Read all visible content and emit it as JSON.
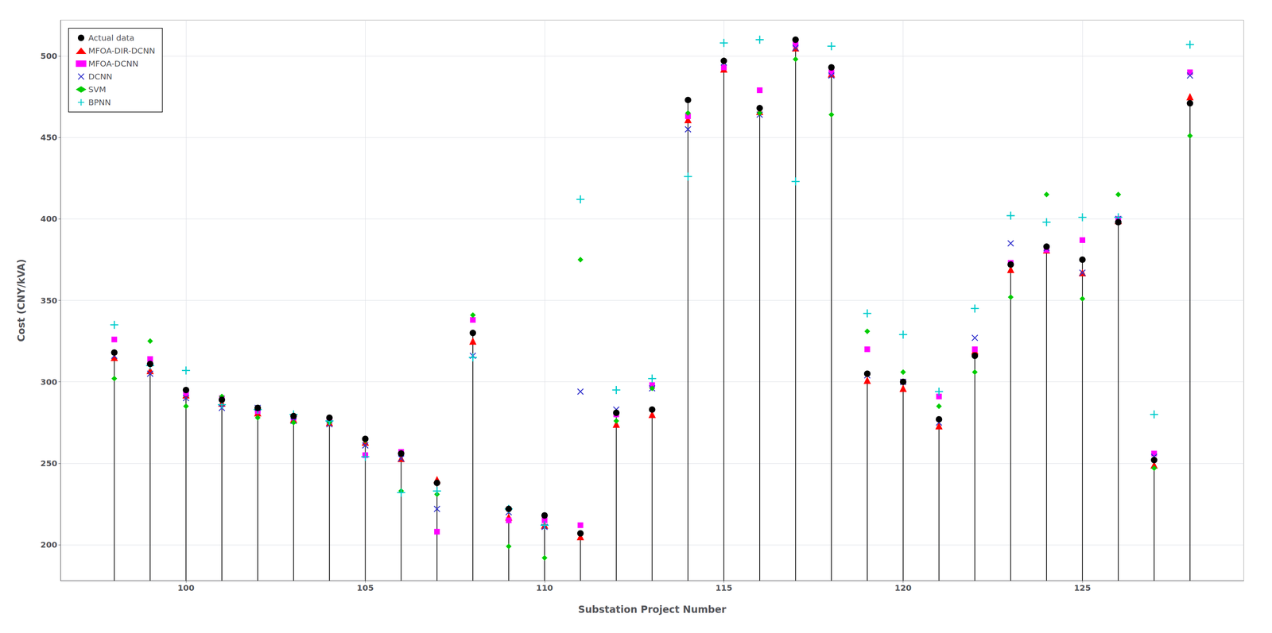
{
  "chart_data": {
    "type": "scatter",
    "xlabel": "Substation Project Number",
    "ylabel": "Cost (CNY/kVA)",
    "x": [
      98,
      99,
      100,
      101,
      102,
      103,
      104,
      105,
      106,
      107,
      108,
      109,
      110,
      111,
      112,
      113,
      114,
      115,
      116,
      117,
      118,
      119,
      120,
      121,
      122,
      123,
      124,
      125,
      126,
      127,
      128
    ],
    "xlim": [
      96.5,
      129.5
    ],
    "ylim": [
      178,
      522
    ],
    "xticks": [
      100,
      105,
      110,
      115,
      120,
      125
    ],
    "yticks": [
      200,
      250,
      300,
      350,
      400,
      450,
      500
    ],
    "grid": true,
    "legend": "upper left",
    "series": [
      {
        "name": "Actual data",
        "type": "stem",
        "color": "#000000",
        "marker": "circle",
        "values": [
          318,
          311,
          295,
          289,
          284,
          279,
          278,
          265,
          256,
          238,
          330,
          222,
          218,
          207,
          281,
          283,
          473,
          497,
          468,
          510,
          493,
          305,
          300,
          277,
          316,
          372,
          383,
          375,
          398,
          252,
          471
        ]
      },
      {
        "name": "MFOA-DIR-DCNN",
        "type": "scatter",
        "color": "#ff0000",
        "marker": "triangle",
        "values": [
          315,
          307,
          292,
          287,
          281,
          277,
          275,
          263,
          253,
          240,
          325,
          217,
          212,
          205,
          274,
          280,
          461,
          492,
          466,
          505,
          489,
          301,
          296,
          273,
          319,
          369,
          381,
          367,
          399,
          249,
          475
        ]
      },
      {
        "name": "MFOA-DCNN",
        "type": "scatter",
        "color": "#ff00ff",
        "marker": "square",
        "values": [
          326,
          314,
          293,
          290,
          282,
          278,
          276,
          255,
          257,
          208,
          338,
          215,
          215,
          212,
          280,
          298,
          463,
          493,
          479,
          507,
          490,
          320,
          300,
          291,
          320,
          373,
          381,
          387,
          400,
          256,
          490
        ]
      },
      {
        "name": "DCNN",
        "type": "scatter",
        "color": "#3333cc",
        "marker": "x",
        "values": [
          316,
          305,
          290,
          284,
          284,
          276,
          274,
          261,
          253,
          222,
          316,
          220,
          211,
          294,
          283,
          296,
          455,
          496,
          464,
          505,
          488,
          304,
          300,
          275,
          327,
          385,
          382,
          367,
          400,
          254,
          488
        ]
      },
      {
        "name": "SVM",
        "type": "scatter",
        "color": "#00cc00",
        "marker": "diamond",
        "values": [
          302,
          325,
          285,
          291,
          278,
          275,
          275,
          264,
          233,
          231,
          341,
          199,
          192,
          375,
          276,
          296,
          465,
          497,
          465,
          498,
          464,
          331,
          306,
          285,
          306,
          352,
          415,
          351,
          415,
          247,
          451
        ]
      },
      {
        "name": "BPNN",
        "type": "scatter",
        "color": "#00cccc",
        "marker": "plus",
        "values": [
          335,
          310,
          307,
          286,
          283,
          280,
          276,
          254,
          232,
          233,
          315,
          222,
          212,
          412,
          295,
          302,
          426,
          508,
          510,
          423,
          506,
          342,
          329,
          294,
          345,
          402,
          398,
          401,
          401,
          280,
          507
        ]
      }
    ]
  }
}
